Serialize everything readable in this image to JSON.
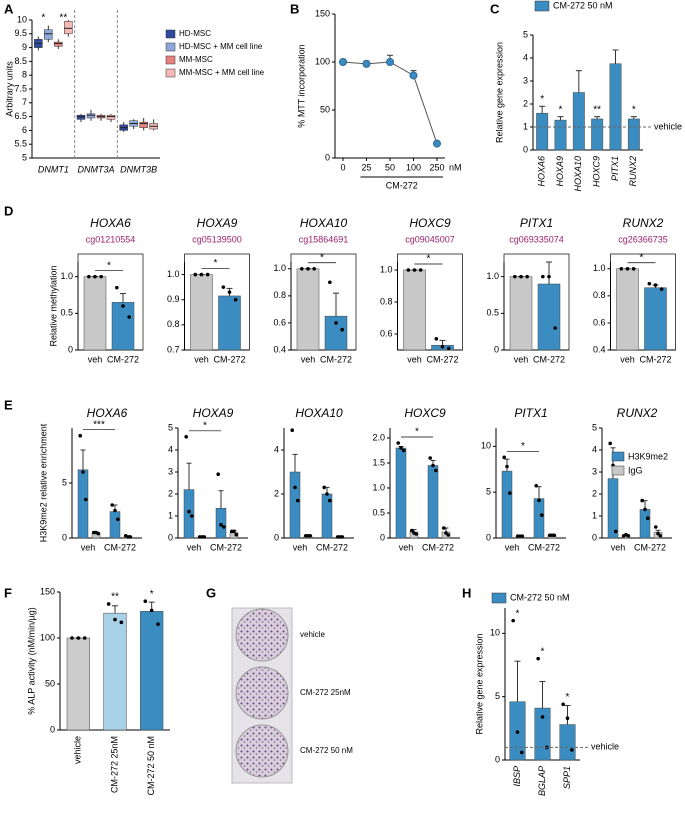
{
  "chart_data": [
    {
      "panel": "A",
      "type": "box",
      "ylabel": "Arbitrary units",
      "categories": [
        "DNMT1",
        "DNMT3A",
        "DNMT3B"
      ],
      "ylim": [
        5,
        10
      ],
      "yticks": [
        5,
        5.5,
        6,
        6.5,
        7,
        7.5,
        8,
        8.5,
        9,
        9.5,
        10
      ],
      "significance": [
        "*",
        "**"
      ],
      "series": [
        {
          "name": "HD-MSC",
          "color": "#2e4a9e",
          "boxes": [
            {
              "min": 8.9,
              "q1": 9.0,
              "median": 9.15,
              "q3": 9.3,
              "max": 9.4
            },
            {
              "min": 6.3,
              "q1": 6.4,
              "median": 6.5,
              "q3": 6.55,
              "max": 6.6
            },
            {
              "min": 5.95,
              "q1": 6.0,
              "median": 6.1,
              "q3": 6.2,
              "max": 6.3
            }
          ]
        },
        {
          "name": "HD-MSC + MM cell line",
          "color": "#8fa8dc",
          "boxes": [
            {
              "min": 9.2,
              "q1": 9.3,
              "median": 9.5,
              "q3": 9.65,
              "max": 9.8
            },
            {
              "min": 6.35,
              "q1": 6.45,
              "median": 6.55,
              "q3": 6.6,
              "max": 6.75
            },
            {
              "min": 6.05,
              "q1": 6.15,
              "median": 6.25,
              "q3": 6.35,
              "max": 6.4
            }
          ]
        },
        {
          "name": "MM-MSC",
          "color": "#e88080",
          "boxes": [
            {
              "min": 8.95,
              "q1": 9.05,
              "median": 9.15,
              "q3": 9.2,
              "max": 9.3
            },
            {
              "min": 6.35,
              "q1": 6.45,
              "median": 6.5,
              "q3": 6.55,
              "max": 6.6
            },
            {
              "min": 6.0,
              "q1": 6.1,
              "median": 6.25,
              "q3": 6.3,
              "max": 6.45
            }
          ]
        },
        {
          "name": "MM-MSC + MM cell line",
          "color": "#f7b8b8",
          "boxes": [
            {
              "min": 9.4,
              "q1": 9.5,
              "median": 9.7,
              "q3": 9.95,
              "max": 10.0
            },
            {
              "min": 6.3,
              "q1": 6.4,
              "median": 6.5,
              "q3": 6.55,
              "max": 6.6
            },
            {
              "min": 6.0,
              "q1": 6.05,
              "median": 6.15,
              "q3": 6.25,
              "max": 6.4
            }
          ]
        }
      ]
    },
    {
      "panel": "B",
      "type": "line",
      "ylabel": "% MTT incorporation",
      "xlabel": "CM-272",
      "xunit": "nM",
      "categories": [
        "0",
        "25",
        "50",
        "100",
        "250"
      ],
      "color": "#3a8cc1",
      "values": [
        100,
        98,
        100,
        86,
        15
      ],
      "errors": [
        2,
        3,
        7,
        5,
        1
      ],
      "ylim": [
        0,
        150
      ],
      "yticks": [
        0,
        50,
        100,
        150
      ]
    },
    {
      "panel": "C",
      "type": "bar",
      "ylabel": "Relative gene expression",
      "categories": [
        "HOXA6",
        "HOXA9",
        "HOXA10",
        "HOXC9",
        "PITX1",
        "RUNX2"
      ],
      "series": [
        {
          "name": "CM-272 50 nM",
          "color": "#3a8cc1",
          "values": [
            1.6,
            1.3,
            2.5,
            1.35,
            3.75,
            1.35
          ],
          "errors": [
            0.3,
            0.15,
            0.95,
            0.1,
            0.6,
            0.1
          ]
        }
      ],
      "significance": [
        "*",
        "*",
        null,
        "**",
        null,
        "*"
      ],
      "reference": {
        "value": 1,
        "label": "vehicle"
      },
      "ylim": [
        0,
        5
      ],
      "yticks": [
        0,
        1,
        2,
        3,
        4,
        5
      ]
    },
    {
      "panel": "D",
      "type": "bar",
      "ylabel": "Relative methylation",
      "categories": [
        "veh",
        "CM-272"
      ],
      "colors": [
        "#c8c8c8",
        "#3a8cc1"
      ],
      "facets": [
        {
          "title": "HOXA6",
          "subtitle": "cg01210554",
          "ylim": [
            0,
            1.2
          ],
          "yticks": [
            0,
            0.5,
            {
              "value": 1,
              "label": "1.0"
            }
          ],
          "values": [
            1,
            0.65
          ],
          "errors": [
            0,
            0.12
          ],
          "points": [
            [
              1,
              1,
              1
            ],
            [
              0.85,
              0.6,
              0.45
            ]
          ],
          "comparison": "*"
        },
        {
          "title": "HOXA9",
          "subtitle": "cg05139500",
          "ylim": [
            0.7,
            1.05
          ],
          "yticks": [
            0.7,
            0.8,
            0.9,
            {
              "value": 1,
              "label": "1.0"
            }
          ],
          "values": [
            1,
            0.915
          ],
          "errors": [
            0,
            0.03
          ],
          "points": [
            [
              1,
              1,
              1
            ],
            [
              0.95,
              0.93,
              0.9
            ]
          ],
          "comparison": "*"
        },
        {
          "title": "HOXA10",
          "subtitle": "cg15864691",
          "ylim": [
            0.4,
            1.05
          ],
          "yticks": [
            0.4,
            0.6,
            0.8,
            {
              "value": 1,
              "label": "1.0"
            }
          ],
          "values": [
            1,
            0.65
          ],
          "errors": [
            0,
            0.17
          ],
          "points": [
            [
              1,
              1,
              1
            ],
            [
              0.9,
              0.6,
              0.55
            ]
          ],
          "comparison": "*"
        },
        {
          "title": "HOXC9",
          "subtitle": "cg09045007",
          "ylim": [
            0.5,
            1.05
          ],
          "yticks": [
            0.6,
            0.8,
            {
              "value": 1,
              "label": "1.0"
            }
          ],
          "values": [
            1,
            0.53
          ],
          "errors": [
            0,
            0.03
          ],
          "points": [
            [
              1,
              1,
              1
            ],
            [
              0.57,
              0.52,
              0.51
            ]
          ],
          "comparison": "*"
        },
        {
          "title": "PITX1",
          "subtitle": "cg069335074",
          "ylim": [
            0,
            1.2
          ],
          "yticks": [
            0,
            0.5,
            {
              "value": 1,
              "label": "1.0"
            }
          ],
          "values": [
            1,
            0.9
          ],
          "errors": [
            0,
            0.3
          ],
          "points": [
            [
              1,
              1,
              1
            ],
            [
              1.0,
              1.0,
              0.3
            ]
          ]
        },
        {
          "title": "RUNX2",
          "subtitle": "cg26366735",
          "ylim": [
            0.4,
            1.05
          ],
          "yticks": [
            0.4,
            0.6,
            0.8,
            {
              "value": 1,
              "label": "1.0"
            }
          ],
          "values": [
            1,
            0.86
          ],
          "errors": [
            0,
            0.02
          ],
          "points": [
            [
              1,
              1,
              1
            ],
            [
              0.89,
              0.88,
              0.85
            ]
          ],
          "comparison": "*"
        }
      ]
    },
    {
      "panel": "E",
      "type": "bar",
      "ylabel": "H3K9me2 relative enrichment",
      "categories": [
        "veh",
        "CM-272"
      ],
      "series": [
        {
          "name": "H3K9me2",
          "color": "#3a8cc1"
        },
        {
          "name": "IgG",
          "color": "#c8c8c8"
        }
      ],
      "facets": [
        {
          "title": "HOXA6",
          "ylim": [
            0,
            10
          ],
          "yticks": [
            0,
            5
          ],
          "comparison": "***",
          "series": [
            {
              "values": [
                6.2,
                2.4
              ],
              "errors": [
                1.8,
                0.6
              ],
              "points": [
                [
                  9.3,
                  6,
                  3.5
                ],
                [
                  3,
                  2.5,
                  1.7
                ]
              ]
            },
            {
              "values": [
                0.45,
                0.15
              ],
              "errors": [
                0.1,
                0.05
              ],
              "points": [
                [
                  0.5,
                  0.5,
                  0.4
                ],
                [
                  0.2,
                  0.1,
                  0.1
                ]
              ]
            }
          ]
        },
        {
          "title": "HOXA9",
          "ylim": [
            0,
            5
          ],
          "yticks": [
            0,
            1,
            2,
            3,
            4,
            5
          ],
          "comparison": "*",
          "series": [
            {
              "values": [
                2.2,
                1.35
              ],
              "errors": [
                1.2,
                0.8
              ],
              "points": [
                [
                  4.6,
                  1.2,
                  1.0
                ],
                [
                  2.9,
                  0.6,
                  0.5
                ]
              ]
            },
            {
              "values": [
                0.05,
                0.25
              ],
              "errors": [
                0.02,
                0.1
              ],
              "points": [
                [
                  0.05,
                  0.05,
                  0.05
                ],
                [
                  0.3,
                  0.3,
                  0.15
                ]
              ]
            }
          ]
        },
        {
          "title": "HOXA10",
          "ylim": [
            0,
            5
          ],
          "yticks": [
            0,
            2,
            4
          ],
          "series": [
            {
              "values": [
                3.0,
                2.0
              ],
              "errors": [
                0.8,
                0.3
              ],
              "points": [
                [
                  4.9,
                  2.3,
                  1.7
                ],
                [
                  2.3,
                  2.0,
                  1.7
                ]
              ]
            },
            {
              "values": [
                0.1,
                0.05
              ],
              "errors": [
                0.03,
                0.02
              ],
              "points": [
                [
                  0.1,
                  0.1,
                  0.1
                ],
                [
                  0.05,
                  0.05,
                  0.05
                ]
              ]
            }
          ]
        },
        {
          "title": "HOXC9",
          "ylim": [
            0,
            2.2
          ],
          "yticks": [
            0,
            0.5,
            {
              "value": 1,
              "label": "1.0"
            },
            1.5,
            {
              "value": 2,
              "label": "2.0"
            }
          ],
          "comparison": "*",
          "series": [
            {
              "values": [
                1.8,
                1.45
              ],
              "errors": [
                0.03,
                0.1
              ],
              "points": [
                [
                  1.9,
                  1.8,
                  1.75
                ],
                [
                  1.6,
                  1.45,
                  1.35
                ]
              ]
            },
            {
              "values": [
                0.12,
                0.12
              ],
              "errors": [
                0.05,
                0.08
              ],
              "points": [
                [
                  0.15,
                  0.1,
                  0.08
                ],
                [
                  0.2,
                  0.1,
                  0.06
                ]
              ]
            }
          ]
        },
        {
          "title": "PITX1",
          "ylim": [
            0,
            12
          ],
          "yticks": [
            0,
            5,
            10
          ],
          "comparison": "*",
          "series": [
            {
              "values": [
                7.3,
                4.3
              ],
              "errors": [
                1.3,
                1.3
              ],
              "points": [
                [
                  8.8,
                  7.8,
                  4.9
                ],
                [
                  5.7,
                  4.1,
                  2.5
                ]
              ]
            },
            {
              "values": [
                0.2,
                0.3
              ],
              "errors": [
                0.05,
                0.1
              ],
              "points": [
                [
                  0.2,
                  0.2,
                  0.2
                ],
                [
                  0.3,
                  0.3,
                  0.3
                ]
              ]
            }
          ]
        },
        {
          "title": "RUNX2",
          "ylim": [
            0,
            5
          ],
          "yticks": [
            0,
            1,
            2,
            3,
            4,
            5
          ],
          "series": [
            {
              "values": [
                2.7,
                1.3
              ],
              "errors": [
                1.4,
                0.4
              ],
              "points": [
                [
                  4.3,
                  3.3,
                  0.3
                ],
                [
                  1.7,
                  1.3,
                  0.9
                ]
              ]
            },
            {
              "values": [
                0.1,
                0.25
              ],
              "errors": [
                0.05,
                0.1
              ],
              "points": [
                [
                  0.1,
                  0.15,
                  0.1
                ],
                [
                  0.5,
                  0.2,
                  0.1
                ]
              ]
            }
          ]
        }
      ]
    },
    {
      "panel": "F",
      "type": "bar",
      "ylabel": "% ALP activity (nM/min/µg)",
      "categories": [
        "vehicle",
        "CM-272 25nM",
        "CM-272 50 nM"
      ],
      "colors": [
        "#cccccc",
        "#a8d0e6",
        "#3a8cc1"
      ],
      "values": [
        100,
        127,
        129
      ],
      "errors": [
        0,
        8,
        10
      ],
      "points": [
        [
          100,
          100,
          100
        ],
        [
          137,
          120,
          117
        ],
        [
          140,
          130,
          115
        ]
      ],
      "significance": [
        null,
        "**",
        "*"
      ],
      "ylim": [
        0,
        150
      ],
      "yticks": [
        0,
        50,
        100,
        150
      ]
    },
    {
      "panel": "G",
      "type": "image",
      "labels": [
        "vehicle",
        "CM-272 25nM",
        "CM-272 50 nM"
      ]
    },
    {
      "panel": "H",
      "type": "bar",
      "ylabel": "Relative gene expression",
      "categories": [
        "IBSP",
        "BGLAP",
        "SPP1"
      ],
      "series": [
        {
          "name": "CM-272 50 nM",
          "color": "#3a8cc1",
          "values": [
            4.6,
            4.1,
            2.8
          ],
          "errors": [
            3.2,
            2.1,
            1.5
          ],
          "points": [
            [
              11,
              2.2,
              0.6
            ],
            [
              8,
              3.4,
              1.0
            ],
            [
              4.4,
              3.3,
              0.8
            ]
          ]
        }
      ],
      "significance": [
        "*",
        "*",
        "*"
      ],
      "reference": {
        "value": 1,
        "label": "vehicle"
      },
      "ylim": [
        0,
        12
      ],
      "yticks": [
        0,
        5,
        10
      ]
    }
  ]
}
